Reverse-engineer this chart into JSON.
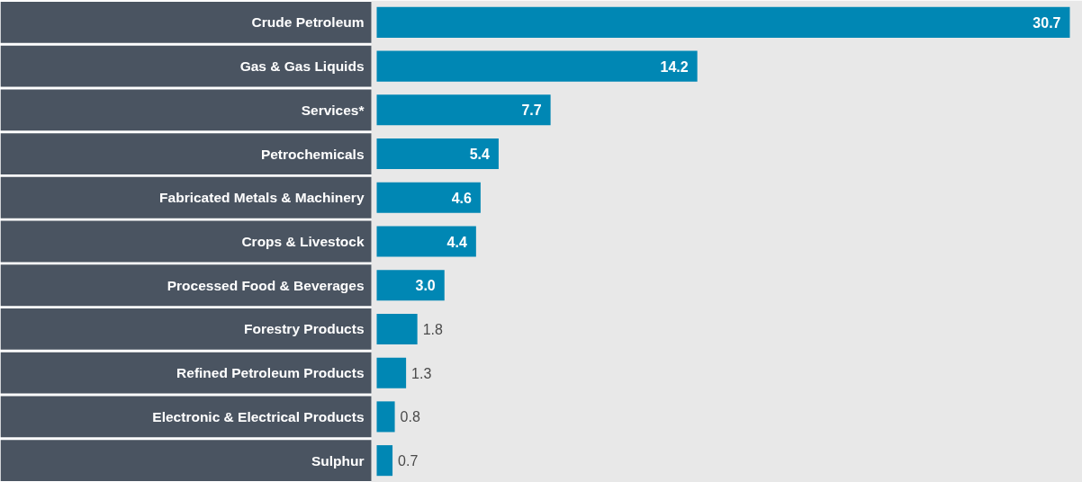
{
  "chart_data": {
    "type": "bar",
    "orientation": "horizontal",
    "grid": false,
    "value_labels": [
      "30.7",
      "14.2",
      "7.7",
      "5.4",
      "4.6",
      "4.4",
      "3.0",
      "1.8",
      "1.3",
      "0.8",
      "0.7"
    ],
    "categories": [
      "Crude Petroleum",
      "Gas & Gas Liquids",
      "Services*",
      "Petrochemicals",
      "Fabricated Metals & Machinery",
      "Crops & Livestock",
      "Processed Food & Beverages",
      "Forestry Products",
      "Refined Petroleum Products",
      "Electronic & Electrical Products",
      "Sulphur"
    ],
    "values": [
      30.7,
      14.2,
      7.7,
      5.4,
      4.6,
      4.4,
      3.0,
      1.8,
      1.3,
      0.8,
      0.7
    ],
    "color": "#0087b4"
  }
}
